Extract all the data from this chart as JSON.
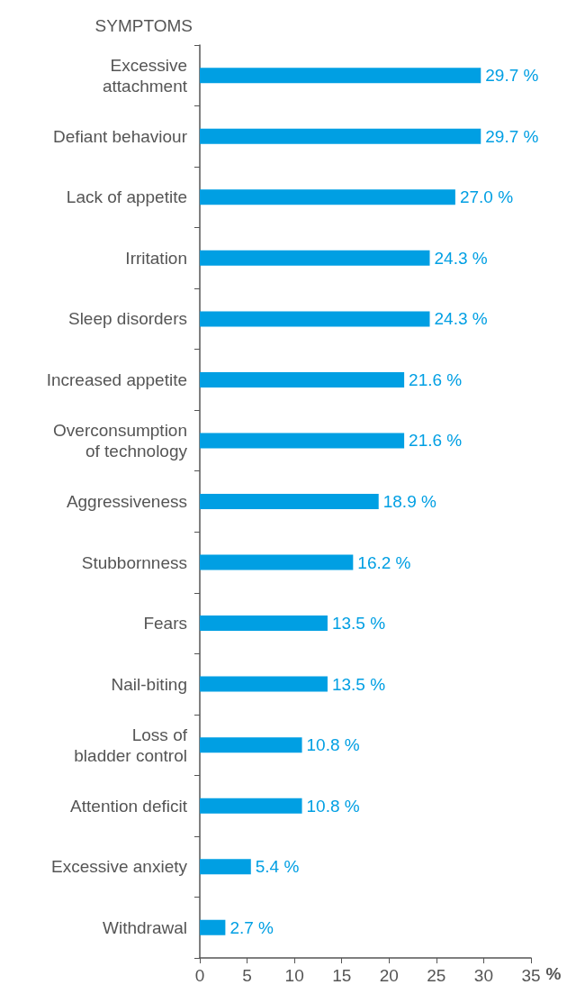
{
  "chart_data": {
    "type": "bar",
    "orientation": "horizontal",
    "ylabel": "SYMPTOMS",
    "xlabel": "%",
    "categories": [
      "Excessive\nattachment",
      "Defiant behaviour",
      "Lack of appetite",
      "Irritation",
      "Sleep disorders",
      "Increased appetite",
      "Overconsumption\nof technology",
      "Aggressiveness",
      "Stubbornness",
      "Fears",
      "Nail-biting",
      "Loss of\nbladder control",
      "Attention deficit",
      "Excessive anxiety",
      "Withdrawal"
    ],
    "values": [
      29.7,
      29.7,
      27.0,
      24.3,
      24.3,
      21.6,
      21.6,
      18.9,
      16.2,
      13.5,
      13.5,
      10.8,
      10.8,
      5.4,
      2.7
    ],
    "value_labels": [
      "29.7 %",
      "29.7 %",
      "27.0 %",
      "24.3 %",
      "24.3 %",
      "21.6 %",
      "21.6 %",
      "18.9 %",
      "16.2 %",
      "13.5 %",
      "13.5 %",
      "10.8 %",
      "10.8 %",
      "5.4 %",
      "2.7 %"
    ],
    "color": "#009fe3",
    "xlim": [
      0,
      35
    ],
    "xticks": [
      0,
      5,
      10,
      15,
      20,
      25,
      30,
      35
    ],
    "grid": false
  }
}
